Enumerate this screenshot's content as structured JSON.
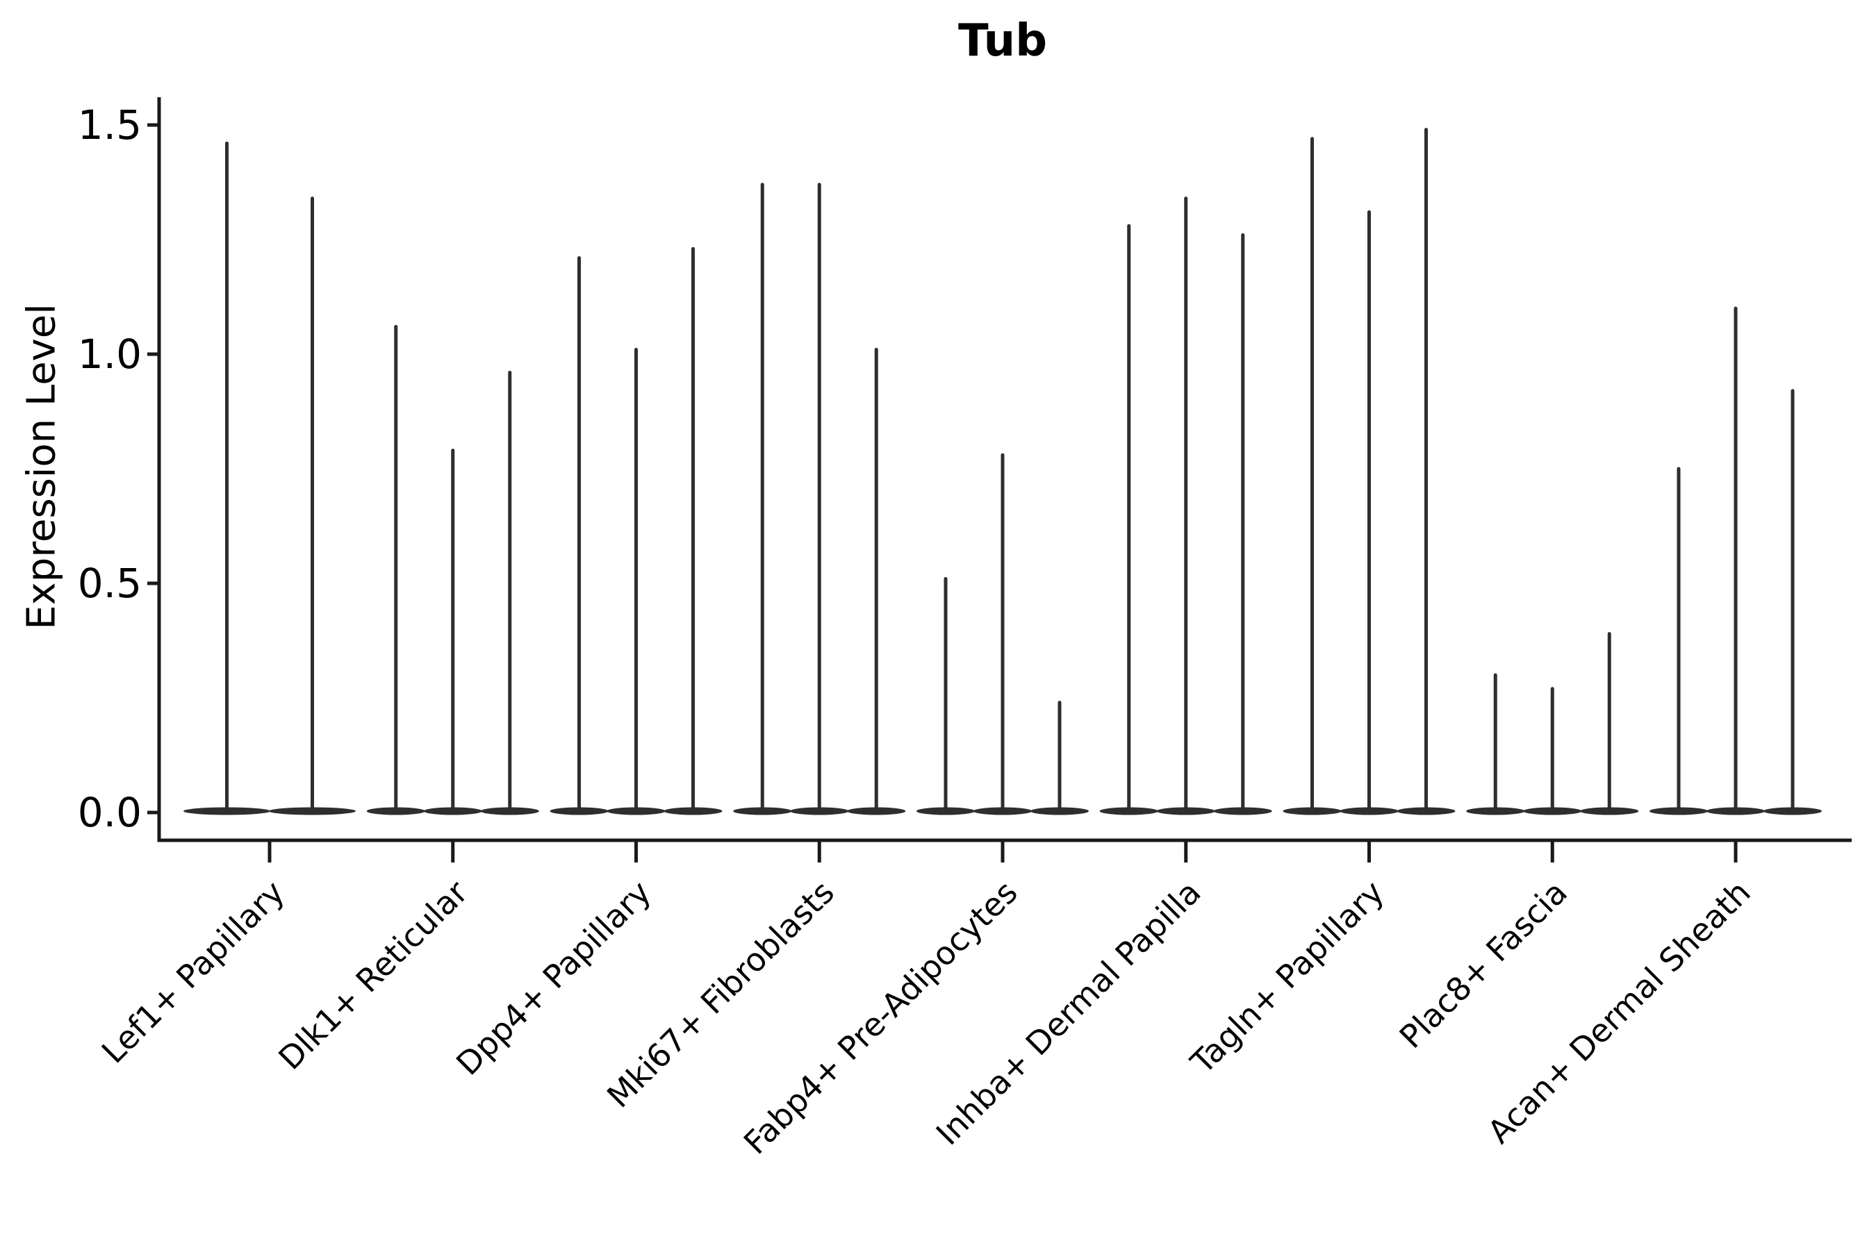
{
  "title": {
    "text": "Tub"
  },
  "y_axis": {
    "label": "Expression Level",
    "tick_labels": [
      "1.5",
      "1.0",
      "0.5",
      "0.0"
    ],
    "tick_values": [
      1.5,
      1.0,
      0.5,
      0.0
    ]
  },
  "x_axis": {
    "categories": [
      "Lef1+ Papillary",
      "Dlk1+ Reticular",
      "Dpp4+ Papillary",
      "Mki67+ Fibroblasts",
      "Fabp4+ Pre-Adipocytes",
      "Inhba+ Dermal Papilla",
      "Tagln+ Papillary",
      "Plac8+ Fascia",
      "Acan+ Dermal Sheath"
    ]
  },
  "chart_data": {
    "type": "violin",
    "title": "Tub",
    "xlabel": "",
    "ylabel": "Expression Level",
    "ylim": [
      -0.06,
      1.57
    ],
    "yticks": [
      0.0,
      0.5,
      1.0,
      1.5
    ],
    "grid": false,
    "legend_position": "none",
    "categories": [
      "Lef1+ Papillary",
      "Dlk1+ Reticular",
      "Dpp4+ Papillary",
      "Mki67+ Fibroblasts",
      "Fabp4+ Pre-Adipocytes",
      "Inhba+ Dermal Papilla",
      "Tagln+ Papillary",
      "Plac8+ Fascia",
      "Acan+ Dermal Sheath"
    ],
    "groups": [
      {
        "category": "Lef1+ Papillary",
        "violin_maxima": [
          1.46,
          1.34
        ]
      },
      {
        "category": "Dlk1+ Reticular",
        "violin_maxima": [
          1.06,
          0.79,
          0.96
        ]
      },
      {
        "category": "Dpp4+ Papillary",
        "violin_maxima": [
          1.21,
          1.01,
          1.23
        ]
      },
      {
        "category": "Mki67+ Fibroblasts",
        "violin_maxima": [
          1.37,
          1.37,
          1.01
        ]
      },
      {
        "category": "Fabp4+ Pre-Adipocytes",
        "violin_maxima": [
          0.51,
          0.78,
          0.24
        ]
      },
      {
        "category": "Inhba+ Dermal Papilla",
        "violin_maxima": [
          1.28,
          1.34,
          1.26
        ]
      },
      {
        "category": "Tagln+ Papillary",
        "violin_maxima": [
          1.47,
          1.31,
          1.49
        ]
      },
      {
        "category": "Plac8+ Fascia",
        "violin_maxima": [
          0.3,
          0.27,
          0.39
        ]
      },
      {
        "category": "Acan+ Dermal Sheath",
        "violin_maxima": [
          0.75,
          1.1,
          0.92
        ]
      }
    ],
    "violin_shape_note": "Each violin is a very thin vertical spike rising from a wide flat base at expression level 0 (density concentrated at zero).",
    "colors": {
      "violin": "#2e2e2e",
      "axis": "#1a1a1a",
      "text": "#000000",
      "background": "#ffffff"
    }
  }
}
